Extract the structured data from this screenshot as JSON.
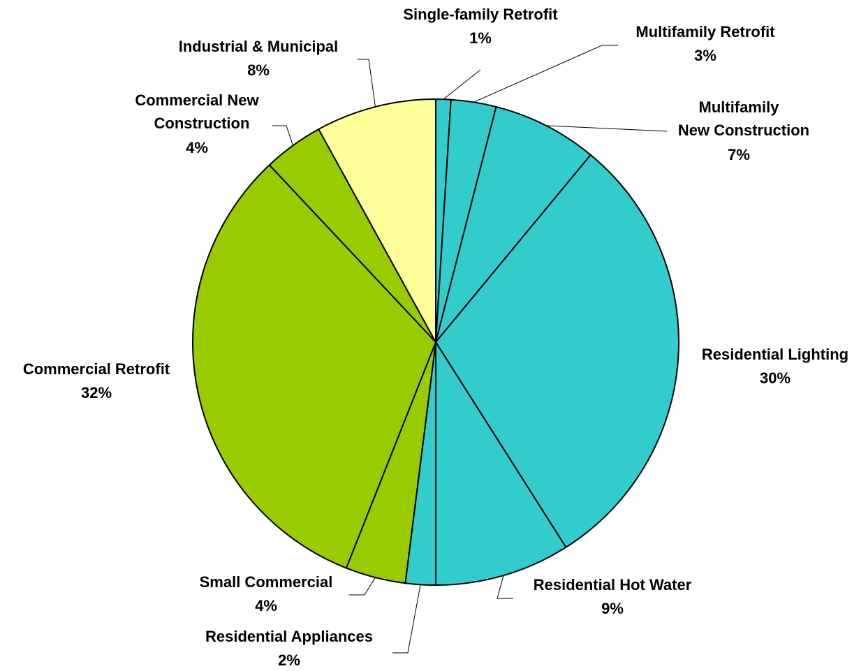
{
  "chart_data": {
    "type": "pie",
    "categories": [
      "Single-family Retrofit",
      "Multifamily Retrofit",
      "Multifamily New Construction",
      "Residential Lighting",
      "Residential Hot Water",
      "Residential Appliances",
      "Small Commercial",
      "Commercial Retrofit",
      "Commercial New Construction",
      "Industrial & Municipal"
    ],
    "values": [
      1,
      3,
      7,
      30,
      9,
      2,
      4,
      32,
      4,
      8
    ],
    "value_labels": [
      "1%",
      "3%",
      "7%",
      "30%",
      "9%",
      "2%",
      "4%",
      "32%",
      "4%",
      "8%"
    ],
    "colors": [
      "#33CCCC",
      "#33CCCC",
      "#33CCCC",
      "#33CCCC",
      "#33CCCC",
      "#33CCCC",
      "#99CC00",
      "#99CC00",
      "#99CC00",
      "#FFFF99"
    ]
  }
}
